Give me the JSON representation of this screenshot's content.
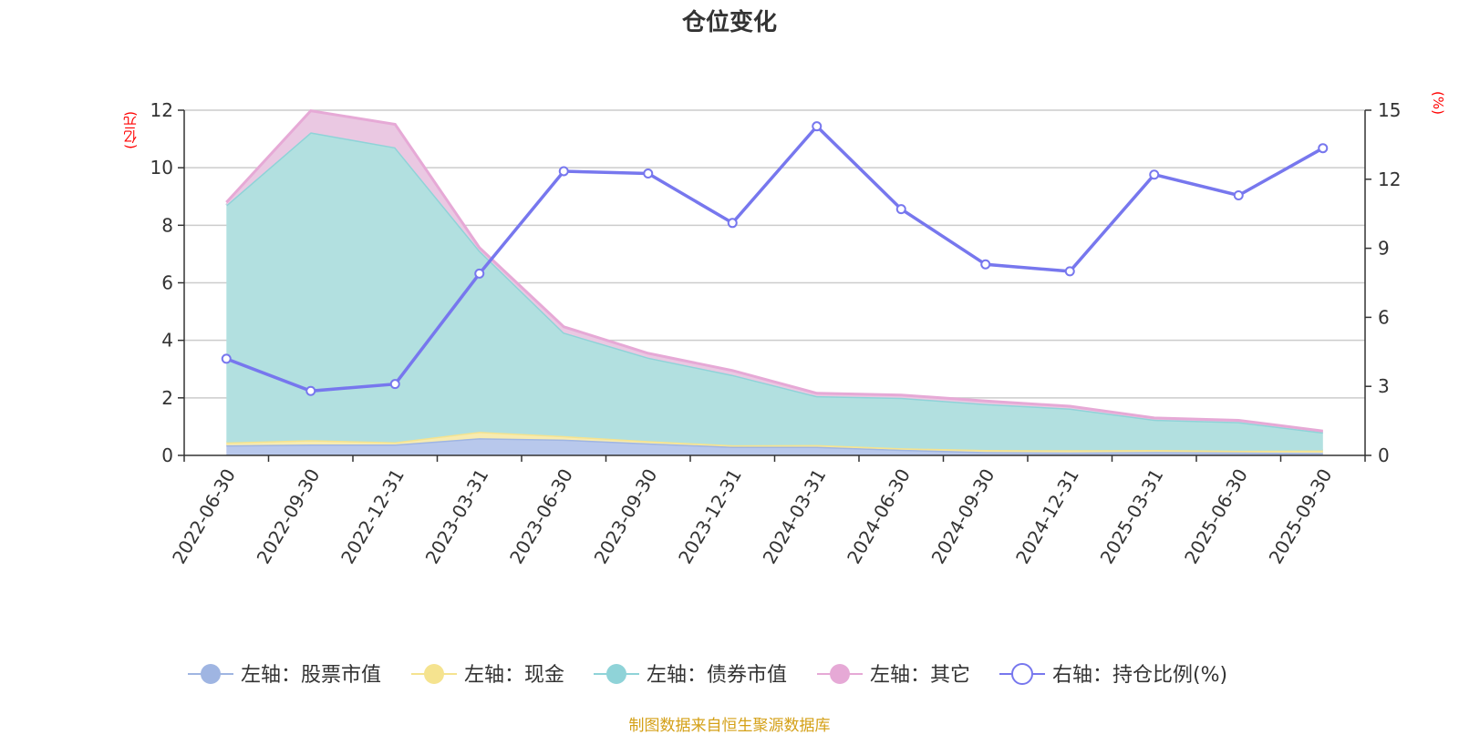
{
  "title": "仓位变化",
  "footer": "制图数据来自恒生聚源数据库",
  "chart_data": {
    "type": "area",
    "title": "仓位变化",
    "categories": [
      "2022-06-30",
      "2022-09-30",
      "2022-12-31",
      "2023-03-31",
      "2023-06-30",
      "2023-09-30",
      "2023-12-31",
      "2024-03-31",
      "2024-06-30",
      "2024-09-30",
      "2024-12-31",
      "2025-03-31",
      "2025-06-30",
      "2025-09-30"
    ],
    "left_axis": {
      "unit": "(亿元)",
      "ylim": [
        0,
        12
      ],
      "ticks": [
        0,
        2,
        4,
        6,
        8,
        10,
        12
      ]
    },
    "right_axis": {
      "unit": "(%)",
      "ylim": [
        0,
        15
      ],
      "ticks": [
        0,
        3,
        6,
        9,
        12,
        15
      ]
    },
    "stacked_series": [
      {
        "name": "左轴：股票市值",
        "color": "#9fb5e2",
        "fill": "#b8c8ec",
        "values": [
          0.35,
          0.38,
          0.38,
          0.6,
          0.55,
          0.42,
          0.3,
          0.3,
          0.2,
          0.12,
          0.1,
          0.12,
          0.1,
          0.09
        ]
      },
      {
        "name": "左轴：现金",
        "color": "#f5e38f",
        "fill": "#f7ebb0",
        "values": [
          0.1,
          0.15,
          0.08,
          0.22,
          0.12,
          0.08,
          0.05,
          0.06,
          0.05,
          0.07,
          0.08,
          0.07,
          0.06,
          0.08
        ]
      },
      {
        "name": "左轴：债券市值",
        "color": "#8fd3d8",
        "fill": "#b2e0e0",
        "values": [
          8.25,
          10.7,
          10.25,
          6.3,
          3.6,
          2.9,
          2.45,
          1.7,
          1.75,
          1.6,
          1.45,
          1.05,
          1.0,
          0.63
        ]
      },
      {
        "name": "左轴：其它",
        "color": "#e6a9d6",
        "fill": "#eac8e2",
        "values": [
          0.1,
          0.75,
          0.8,
          0.1,
          0.2,
          0.15,
          0.15,
          0.1,
          0.1,
          0.1,
          0.08,
          0.06,
          0.06,
          0.05
        ]
      }
    ],
    "line_series": {
      "name": "右轴：持仓比例(%)",
      "axis": "right",
      "color": "#7777ee",
      "values": [
        4.2,
        2.8,
        3.1,
        7.9,
        12.35,
        12.25,
        10.1,
        14.3,
        10.7,
        8.3,
        8.0,
        12.2,
        11.3,
        13.35
      ]
    },
    "legend": [
      "左轴：股票市值",
      "左轴：现金",
      "左轴：债券市值",
      "左轴：其它",
      "右轴：持仓比例(%)"
    ],
    "grid": true,
    "legend_position": "bottom"
  }
}
